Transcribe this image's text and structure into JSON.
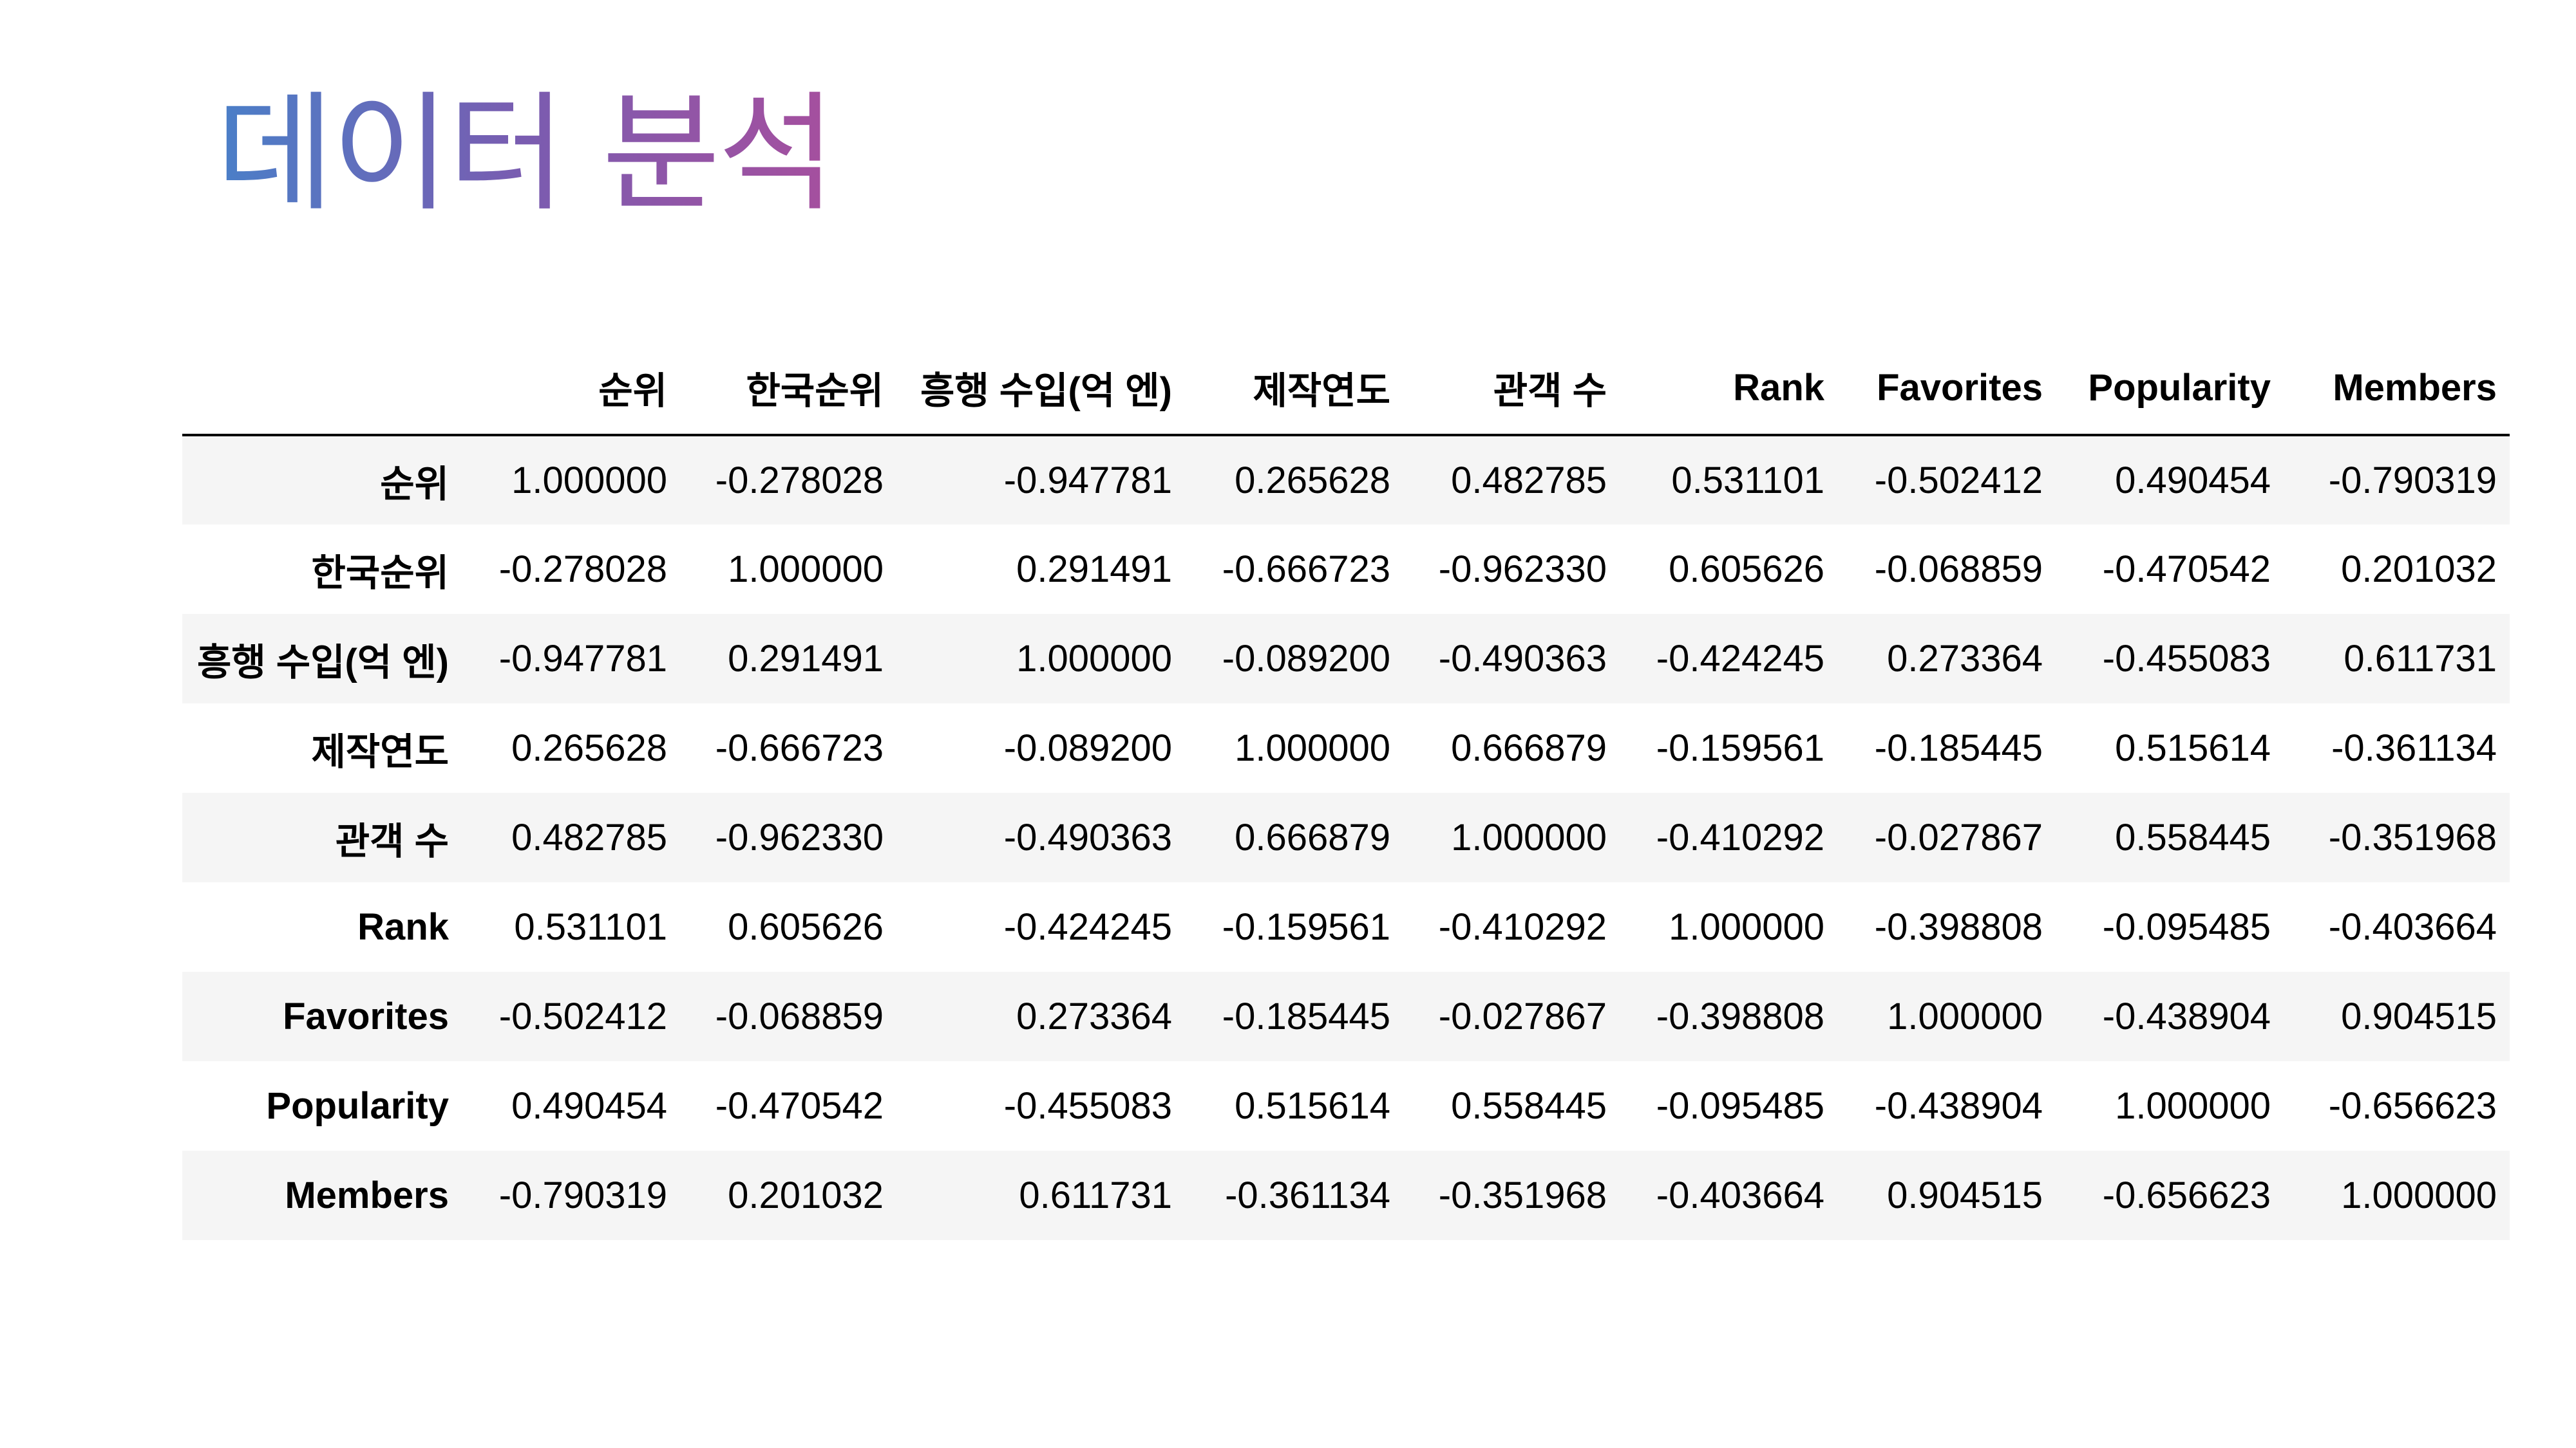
{
  "title": "데이터 분석",
  "colors": {
    "title_gradient_start": "#4a7fc8",
    "title_gradient_end": "#a64f9e",
    "stripe": "#f5f5f5"
  },
  "table": {
    "columns": [
      "순위",
      "한국순위",
      "흥행 수입(억 엔)",
      "제작연도",
      "관객 수",
      "Rank",
      "Favorites",
      "Popularity",
      "Members"
    ],
    "rows": [
      {
        "label": "순위",
        "values": [
          "1.000000",
          "-0.278028",
          "-0.947781",
          "0.265628",
          "0.482785",
          "0.531101",
          "-0.502412",
          "0.490454",
          "-0.790319"
        ]
      },
      {
        "label": "한국순위",
        "values": [
          "-0.278028",
          "1.000000",
          "0.291491",
          "-0.666723",
          "-0.962330",
          "0.605626",
          "-0.068859",
          "-0.470542",
          "0.201032"
        ]
      },
      {
        "label": "흥행 수입(억 엔)",
        "values": [
          "-0.947781",
          "0.291491",
          "1.000000",
          "-0.089200",
          "-0.490363",
          "-0.424245",
          "0.273364",
          "-0.455083",
          "0.611731"
        ]
      },
      {
        "label": "제작연도",
        "values": [
          "0.265628",
          "-0.666723",
          "-0.089200",
          "1.000000",
          "0.666879",
          "-0.159561",
          "-0.185445",
          "0.515614",
          "-0.361134"
        ]
      },
      {
        "label": "관객 수",
        "values": [
          "0.482785",
          "-0.962330",
          "-0.490363",
          "0.666879",
          "1.000000",
          "-0.410292",
          "-0.027867",
          "0.558445",
          "-0.351968"
        ]
      },
      {
        "label": "Rank",
        "values": [
          "0.531101",
          "0.605626",
          "-0.424245",
          "-0.159561",
          "-0.410292",
          "1.000000",
          "-0.398808",
          "-0.095485",
          "-0.403664"
        ]
      },
      {
        "label": "Favorites",
        "values": [
          "-0.502412",
          "-0.068859",
          "0.273364",
          "-0.185445",
          "-0.027867",
          "-0.398808",
          "1.000000",
          "-0.438904",
          "0.904515"
        ]
      },
      {
        "label": "Popularity",
        "values": [
          "0.490454",
          "-0.470542",
          "-0.455083",
          "0.515614",
          "0.558445",
          "-0.095485",
          "-0.438904",
          "1.000000",
          "-0.656623"
        ]
      },
      {
        "label": "Members",
        "values": [
          "-0.790319",
          "0.201032",
          "0.611731",
          "-0.361134",
          "-0.351968",
          "-0.403664",
          "0.904515",
          "-0.656623",
          "1.000000"
        ]
      }
    ]
  }
}
